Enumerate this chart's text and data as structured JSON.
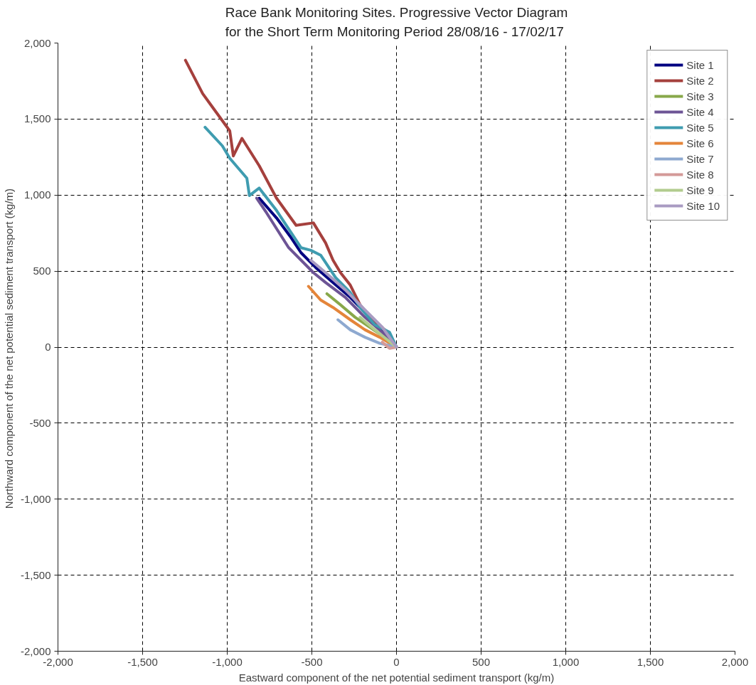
{
  "chart_data": {
    "type": "line",
    "title": "Race Bank Monitoring Sites. Progressive Vector Diagram for the Short Term Monitoring Period 28/08/16 - 17/02/17",
    "xlabel": "Eastward component of the net potential sediment transport (kg/m)",
    "ylabel": "Northward  component of the net potential sediment transport (kg/m)",
    "xlim": [
      -2000,
      2000
    ],
    "ylim": [
      -2000,
      2000
    ],
    "xticks": [
      {
        "value": -2000,
        "label": "-2,000"
      },
      {
        "value": -1500,
        "label": "-1,500"
      },
      {
        "value": -1000,
        "label": "-1,000"
      },
      {
        "value": -500,
        "label": "-500"
      },
      {
        "value": 0,
        "label": "0"
      },
      {
        "value": 500,
        "label": "500"
      },
      {
        "value": 1000,
        "label": "1,000"
      },
      {
        "value": 1500,
        "label": "1,500"
      },
      {
        "value": 2000,
        "label": "2,000"
      }
    ],
    "yticks": [
      {
        "value": -2000,
        "label": "-2,000"
      },
      {
        "value": -1500,
        "label": "-1,500"
      },
      {
        "value": -1000,
        "label": "-1,000"
      },
      {
        "value": -500,
        "label": "-500"
      },
      {
        "value": 0,
        "label": "0"
      },
      {
        "value": 500,
        "label": "500"
      },
      {
        "value": 1000,
        "label": "1,000"
      },
      {
        "value": 1500,
        "label": "1,500"
      },
      {
        "value": 2000,
        "label": "2,000"
      }
    ],
    "grid": true,
    "legend": "top right",
    "line_style": "solid",
    "marker": "none",
    "series": [
      {
        "name": "Site 1",
        "color": "#000080",
        "x": [
          0,
          -84,
          -186,
          -273,
          -375,
          -477,
          -564,
          -622,
          -709,
          -811
        ],
        "values": [
          0,
          114,
          229,
          327,
          425,
          523,
          621,
          719,
          850,
          980
        ]
      },
      {
        "name": "Site 2",
        "color": "#a5403d",
        "x": [
          0,
          -41,
          -70,
          -157,
          -215,
          -273,
          -331,
          -375,
          -419,
          -491,
          -593,
          -709,
          -811,
          -913,
          -964,
          -985,
          -1102,
          -1145,
          -1247
        ],
        "values": [
          0,
          82,
          114,
          196,
          278,
          408,
          490,
          572,
          686,
          817,
          801,
          980,
          1193,
          1373,
          1258,
          1422,
          1601,
          1667,
          1887
        ]
      },
      {
        "name": "Site 3",
        "color": "#88a84a",
        "x": [
          0,
          -70,
          -157,
          -244,
          -331,
          -411
        ],
        "values": [
          0,
          65,
          131,
          196,
          278,
          351
        ]
      },
      {
        "name": "Site 4",
        "color": "#6d5495",
        "x": [
          0,
          -84,
          -186,
          -302,
          -419,
          -491,
          -637,
          -767,
          -826
        ],
        "values": [
          0,
          98,
          196,
          327,
          425,
          490,
          654,
          882,
          980
        ]
      },
      {
        "name": "Site 5",
        "color": "#3f9cb0",
        "x": [
          0,
          -41,
          -128,
          -215,
          -273,
          -360,
          -448,
          -506,
          -564,
          -709,
          -811,
          -869,
          -884,
          -985,
          -1029,
          -1131
        ],
        "values": [
          0,
          98,
          147,
          261,
          359,
          458,
          605,
          637,
          654,
          899,
          1046,
          997,
          1111,
          1242,
          1324,
          1446
        ]
      },
      {
        "name": "Site 6",
        "color": "#e4853a",
        "x": [
          0,
          -99,
          -186,
          -273,
          -375,
          -448,
          -520
        ],
        "values": [
          0,
          65,
          114,
          180,
          261,
          310,
          400
        ]
      },
      {
        "name": "Site 7",
        "color": "#8ea9d0",
        "x": [
          0,
          -99,
          -186,
          -273,
          -346
        ],
        "values": [
          0,
          25,
          65,
          114,
          180
        ]
      },
      {
        "name": "Site 8",
        "color": "#d49a98",
        "x": [
          0,
          -41,
          -84
        ],
        "values": [
          0,
          -8,
          33
        ]
      },
      {
        "name": "Site 9",
        "color": "#b2cc8e",
        "x": [
          0,
          -55,
          -128,
          -215
        ],
        "values": [
          0,
          49,
          114,
          196
        ]
      },
      {
        "name": "Site 10",
        "color": "#a99bc2",
        "x": [
          0,
          -84,
          -186,
          -302,
          -419,
          -506
        ],
        "values": [
          0,
          131,
          245,
          376,
          490,
          572
        ]
      }
    ]
  }
}
